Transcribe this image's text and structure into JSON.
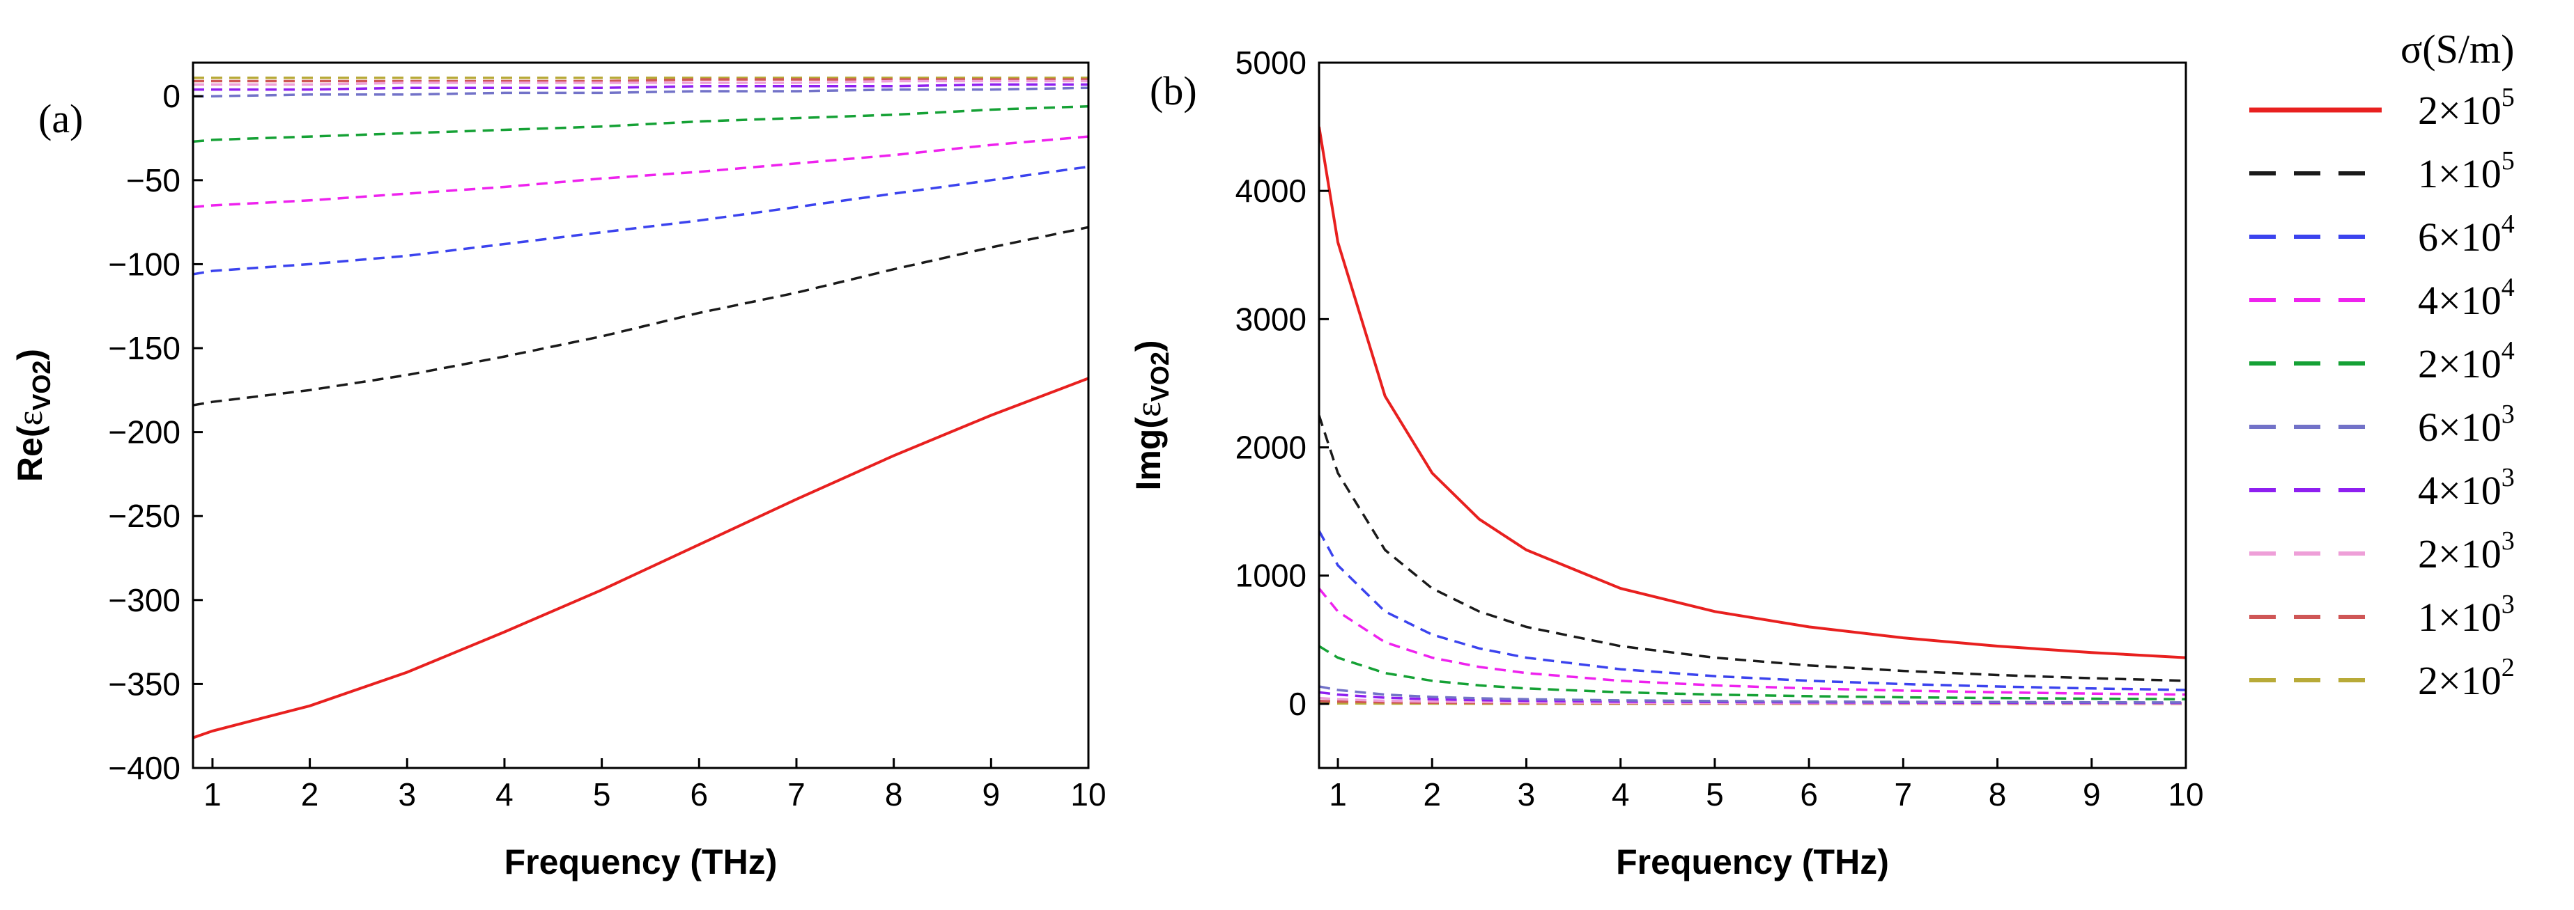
{
  "chart_data": [
    {
      "type": "line",
      "panel_label": "(a)",
      "xlabel": "Frequency (THz)",
      "ylabel_main": "Re(",
      "ylabel_eps": "ε",
      "ylabel_sub": "VO2",
      "ylabel_close": ")",
      "xlim": [
        0.8,
        10
      ],
      "ylim": [
        -400,
        20
      ],
      "xticks": [
        1,
        2,
        3,
        4,
        5,
        6,
        7,
        8,
        9,
        10
      ],
      "yticks": [
        0,
        -50,
        -100,
        -150,
        -200,
        -250,
        -300,
        -350,
        -400
      ],
      "ytick_labels": [
        "0",
        "−50",
        "−100",
        "−150",
        "−200",
        "−250",
        "−300",
        "−350",
        "−400"
      ],
      "x": [
        0.8,
        1,
        2,
        3,
        4,
        5,
        6,
        7,
        8,
        9,
        10
      ],
      "series": [
        {
          "name": "2×10^5",
          "values": [
            -382,
            -378,
            -363,
            -343,
            -319,
            -294,
            -267,
            -240,
            -214,
            -190,
            -168
          ]
        },
        {
          "name": "1×10^5",
          "values": [
            -184,
            -182,
            -175,
            -166,
            -155,
            -143,
            -129,
            -117,
            -103,
            -90,
            -78
          ]
        },
        {
          "name": "6×10^4",
          "values": [
            -106,
            -104,
            -100,
            -95,
            -88,
            -81,
            -74,
            -66,
            -58,
            -50,
            -42
          ]
        },
        {
          "name": "4×10^4",
          "values": [
            -66,
            -65,
            -62,
            -58,
            -54,
            -49,
            -45,
            -40,
            -35,
            -29,
            -24
          ]
        },
        {
          "name": "2×10^4",
          "values": [
            -27,
            -26,
            -24,
            -22,
            -20,
            -18,
            -15,
            -13,
            -11,
            -8,
            -6
          ]
        },
        {
          "name": "6×10^3",
          "values": [
            0,
            0,
            1,
            1,
            2,
            2,
            3,
            3,
            4,
            4,
            5
          ]
        },
        {
          "name": "4×10^3",
          "values": [
            4,
            4,
            4,
            5,
            5,
            5,
            6,
            6,
            6,
            7,
            7
          ]
        },
        {
          "name": "2×10^3",
          "values": [
            7,
            7,
            7,
            8,
            8,
            8,
            8,
            8,
            9,
            9,
            9
          ]
        },
        {
          "name": "1×10^3",
          "values": [
            9,
            9,
            9,
            9,
            9,
            9,
            10,
            10,
            10,
            10,
            10
          ]
        },
        {
          "name": "2×10^2",
          "values": [
            11,
            11,
            11,
            11,
            11,
            11,
            11,
            11,
            11,
            11,
            11
          ]
        }
      ]
    },
    {
      "type": "line",
      "panel_label": "(b)",
      "xlabel": "Frequency (THz)",
      "ylabel_main": "Img(",
      "ylabel_eps": "ε",
      "ylabel_sub": "VO2",
      "ylabel_close": ")",
      "xlim": [
        0.8,
        10
      ],
      "ylim": [
        -500,
        5000
      ],
      "xticks": [
        1,
        2,
        3,
        4,
        5,
        6,
        7,
        8,
        9,
        10
      ],
      "yticks": [
        0,
        1000,
        2000,
        3000,
        4000,
        5000
      ],
      "ytick_labels": [
        "0",
        "1000",
        "2000",
        "3000",
        "4000",
        "5000"
      ],
      "x": [
        0.8,
        1,
        1.5,
        2,
        2.5,
        3,
        4,
        5,
        6,
        7,
        8,
        9,
        10
      ],
      "series": [
        {
          "name": "2×10^5",
          "values": [
            4500,
            3600,
            2400,
            1800,
            1440,
            1200,
            900,
            720,
            600,
            515,
            450,
            400,
            360
          ]
        },
        {
          "name": "1×10^5",
          "values": [
            2250,
            1800,
            1200,
            900,
            720,
            600,
            450,
            360,
            300,
            257,
            225,
            200,
            180
          ]
        },
        {
          "name": "6×10^4",
          "values": [
            1350,
            1080,
            720,
            540,
            432,
            360,
            270,
            216,
            180,
            154,
            135,
            120,
            108
          ]
        },
        {
          "name": "4×10^4",
          "values": [
            900,
            720,
            480,
            360,
            288,
            240,
            180,
            144,
            120,
            103,
            90,
            80,
            72
          ]
        },
        {
          "name": "2×10^4",
          "values": [
            450,
            360,
            240,
            180,
            144,
            120,
            90,
            72,
            60,
            51,
            45,
            40,
            36
          ]
        },
        {
          "name": "6×10^3",
          "values": [
            135,
            108,
            72,
            54,
            43,
            36,
            27,
            22,
            18,
            15,
            14,
            12,
            11
          ]
        },
        {
          "name": "4×10^3",
          "values": [
            90,
            72,
            48,
            36,
            29,
            24,
            18,
            14,
            12,
            10,
            9,
            8,
            7
          ]
        },
        {
          "name": "2×10^3",
          "values": [
            45,
            36,
            24,
            18,
            14,
            12,
            9,
            7,
            6,
            5,
            5,
            4,
            4
          ]
        },
        {
          "name": "1×10^3",
          "values": [
            23,
            18,
            12,
            9,
            7,
            6,
            5,
            4,
            3,
            3,
            2,
            2,
            2
          ]
        },
        {
          "name": "2×10^2",
          "values": [
            5,
            4,
            2,
            2,
            1,
            1,
            1,
            1,
            1,
            1,
            0,
            0,
            0
          ]
        }
      ]
    }
  ],
  "legend": {
    "title": "σ(S/m)",
    "entries": [
      {
        "mantissa": "2×10",
        "exp": "5",
        "color": "#e8201f",
        "style": "solid"
      },
      {
        "mantissa": "1×10",
        "exp": "5",
        "color": "#1a1a1a",
        "style": "dashed"
      },
      {
        "mantissa": "6×10",
        "exp": "4",
        "color": "#3b43ee",
        "style": "dashed"
      },
      {
        "mantissa": "4×10",
        "exp": "4",
        "color": "#ee22ee",
        "style": "dashed"
      },
      {
        "mantissa": "2×10",
        "exp": "4",
        "color": "#15a135",
        "style": "dashed"
      },
      {
        "mantissa": "6×10",
        "exp": "3",
        "color": "#7272c8",
        "style": "dashed"
      },
      {
        "mantissa": "4×10",
        "exp": "3",
        "color": "#8e1ff0",
        "style": "dashed"
      },
      {
        "mantissa": "2×10",
        "exp": "3",
        "color": "#ee9fd8",
        "style": "dashed"
      },
      {
        "mantissa": "1×10",
        "exp": "3",
        "color": "#cf5656",
        "style": "dashed"
      },
      {
        "mantissa": "2×10",
        "exp": "2",
        "color": "#b8aa38",
        "style": "dashed"
      }
    ]
  }
}
